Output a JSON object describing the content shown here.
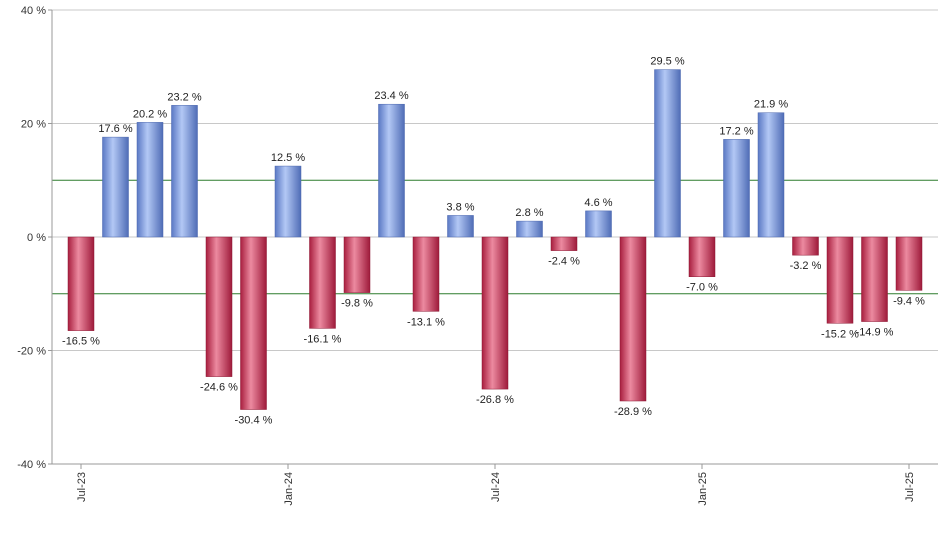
{
  "chart_data": {
    "type": "bar",
    "title": "",
    "xlabel": "",
    "ylabel": "",
    "ylim": [
      -40,
      40
    ],
    "y_ticks": [
      40,
      20,
      0,
      -20,
      -40
    ],
    "y_tick_labels": [
      "40 %",
      "20 %",
      "0 %",
      "-20 %",
      "-40 %"
    ],
    "grid": true,
    "reference_lines": [
      10,
      -10
    ],
    "x_tick_labels": [
      {
        "index": 0,
        "label": "Jul-23"
      },
      {
        "index": 6,
        "label": "Jan-24"
      },
      {
        "index": 12,
        "label": "Jul-24"
      },
      {
        "index": 18,
        "label": "Jan-25"
      },
      {
        "index": 24,
        "label": "Jul-25"
      }
    ],
    "values": [
      -16.5,
      17.6,
      20.2,
      23.2,
      -24.6,
      -30.4,
      12.5,
      -16.1,
      -9.8,
      23.4,
      -13.1,
      3.8,
      -26.8,
      2.8,
      -2.4,
      4.6,
      -28.9,
      29.5,
      -7.0,
      17.2,
      21.9,
      -3.2,
      -15.2,
      -14.9,
      -9.4
    ],
    "value_labels": [
      "-16.5 %",
      "17.6 %",
      "20.2 %",
      "23.2 %",
      "-24.6 %",
      "-30.4 %",
      "12.5 %",
      "-16.1 %",
      "-9.8 %",
      "23.4 %",
      "-13.1 %",
      "3.8 %",
      "-26.8 %",
      "2.8 %",
      "-2.4 %",
      "4.6 %",
      "-28.9 %",
      "29.5 %",
      "-7.0 %",
      "17.2 %",
      "21.9 %",
      "-3.2 %",
      "-15.2 %",
      "-14.9 %",
      "-9.4 %"
    ],
    "colors": {
      "positive": "#6f8fdc",
      "positive_light": "#b3c8f5",
      "negative": "#c42b4f",
      "negative_light": "#ec8aa0",
      "grid": "#c8c8c8",
      "reference": "#2e7d2e",
      "axis": "#999999"
    }
  }
}
